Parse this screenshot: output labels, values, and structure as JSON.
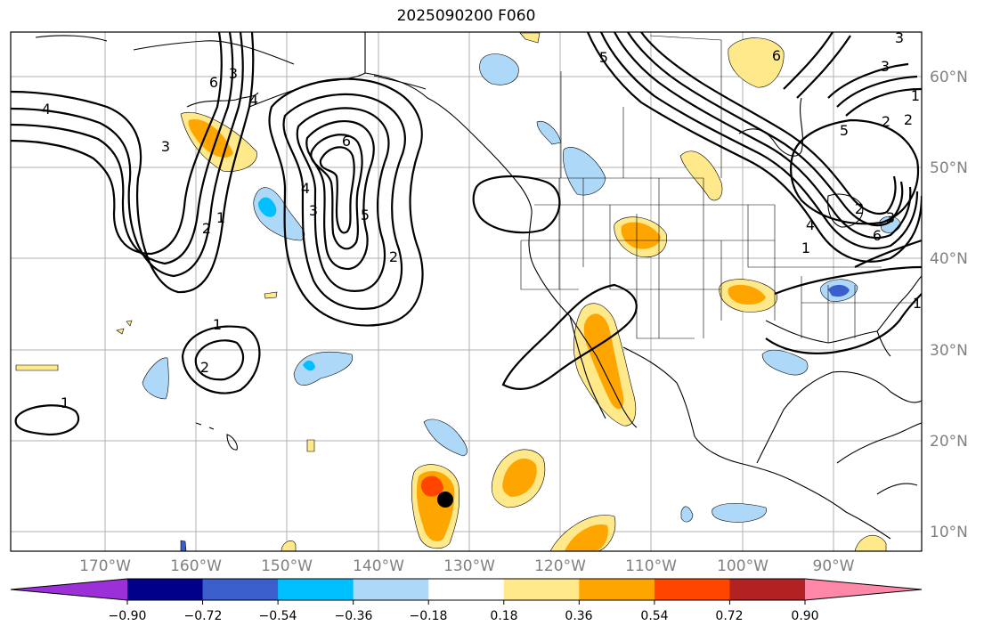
{
  "title": "2025090200 F060",
  "map": {
    "lat_labels": [
      "60°N",
      "50°N",
      "40°N",
      "30°N",
      "20°N",
      "10°N"
    ],
    "lon_labels": [
      "170°W",
      "160°W",
      "150°W",
      "140°W",
      "130°W",
      "120°W",
      "110°W",
      "100°W",
      "90°W"
    ],
    "contour_labels": [
      "4",
      "3",
      "2",
      "1",
      "3",
      "6",
      "6",
      "5",
      "4",
      "3",
      "2",
      "6",
      "5",
      "4",
      "3",
      "2",
      "1",
      "1",
      "2",
      "1",
      "6",
      "3",
      "1",
      "2",
      "5",
      "4",
      "3",
      "2",
      "1"
    ],
    "storm_marker": {
      "lat": 13.5,
      "lon": -131.5
    },
    "shading_colors": [
      "#9b30d9",
      "#00008b",
      "#3a5fcd",
      "#00bfff",
      "#add8f7",
      "#ffffff",
      "#ffe98a",
      "#ffa500",
      "#ff4500",
      "#b22222",
      "#ff88a8"
    ]
  },
  "colorbar": {
    "ticks": [
      "−0.90",
      "−0.72",
      "−0.54",
      "−0.36",
      "−0.18",
      "0.18",
      "0.36",
      "0.54",
      "0.72",
      "0.90"
    ],
    "colors": [
      "#9b30d9",
      "#00008b",
      "#3a5fcd",
      "#00bfff",
      "#add8f7",
      "#ffffff",
      "#ffe98a",
      "#ffa500",
      "#ff4500",
      "#b22222",
      "#ff88a8"
    ]
  }
}
